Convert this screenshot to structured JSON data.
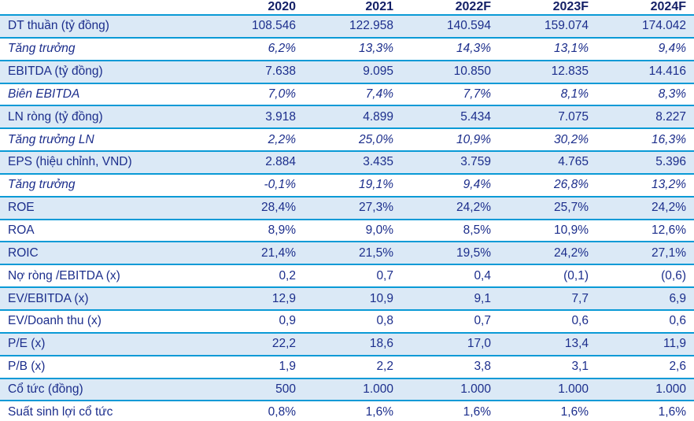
{
  "colors": {
    "header_text": "#131f66",
    "body_text": "#1c2e8c",
    "divider": "#0a9ad6",
    "shaded_row_bg": "#dbe9f6",
    "background": "#ffffff"
  },
  "chart_data": {
    "type": "table",
    "columns": [
      "",
      "2020",
      "2021",
      "2022F",
      "2023F",
      "2024F"
    ],
    "rows": [
      {
        "label": "DT thuần (tỷ đồng)",
        "values": [
          "108.546",
          "122.958",
          "140.594",
          "159.074",
          "174.042"
        ],
        "shaded": true,
        "italic": false
      },
      {
        "label": "Tăng trưởng",
        "values": [
          "6,2%",
          "13,3%",
          "14,3%",
          "13,1%",
          "9,4%"
        ],
        "shaded": false,
        "italic": true
      },
      {
        "label": "EBITDA (tỷ đồng)",
        "values": [
          "7.638",
          "9.095",
          "10.850",
          "12.835",
          "14.416"
        ],
        "shaded": true,
        "italic": false
      },
      {
        "label": "Biên EBITDA",
        "values": [
          "7,0%",
          "7,4%",
          "7,7%",
          "8,1%",
          "8,3%"
        ],
        "shaded": false,
        "italic": true
      },
      {
        "label": "LN ròng (tỷ đồng)",
        "values": [
          "3.918",
          "4.899",
          "5.434",
          "7.075",
          "8.227"
        ],
        "shaded": true,
        "italic": false
      },
      {
        "label": "Tăng trưởng LN",
        "values": [
          "2,2%",
          "25,0%",
          "10,9%",
          "30,2%",
          "16,3%"
        ],
        "shaded": false,
        "italic": true
      },
      {
        "label": "EPS (hiệu chỉnh, VND)",
        "values": [
          "2.884",
          "3.435",
          "3.759",
          "4.765",
          "5.396"
        ],
        "shaded": true,
        "italic": false
      },
      {
        "label": "Tăng trưởng",
        "values": [
          "-0,1%",
          "19,1%",
          "9,4%",
          "26,8%",
          "13,2%"
        ],
        "shaded": false,
        "italic": true
      },
      {
        "label": "ROE",
        "values": [
          "28,4%",
          "27,3%",
          "24,2%",
          "25,7%",
          "24,2%"
        ],
        "shaded": true,
        "italic": false
      },
      {
        "label": "ROA",
        "values": [
          "8,9%",
          "9,0%",
          "8,5%",
          "10,9%",
          "12,6%"
        ],
        "shaded": false,
        "italic": false
      },
      {
        "label": "ROIC",
        "values": [
          "21,4%",
          "21,5%",
          "19,5%",
          "24,2%",
          "27,1%"
        ],
        "shaded": true,
        "italic": false
      },
      {
        "label": "Nợ ròng /EBITDA (x)",
        "values": [
          "0,2",
          "0,7",
          "0,4",
          "(0,1)",
          "(0,6)"
        ],
        "shaded": false,
        "italic": false
      },
      {
        "label": "EV/EBITDA (x)",
        "values": [
          "12,9",
          "10,9",
          "9,1",
          "7,7",
          "6,9"
        ],
        "shaded": true,
        "italic": false
      },
      {
        "label": "EV/Doanh thu (x)",
        "values": [
          "0,9",
          "0,8",
          "0,7",
          "0,6",
          "0,6"
        ],
        "shaded": false,
        "italic": false
      },
      {
        "label": "P/E (x)",
        "values": [
          "22,2",
          "18,6",
          "17,0",
          "13,4",
          "11,9"
        ],
        "shaded": true,
        "italic": false
      },
      {
        "label": "P/B (x)",
        "values": [
          "1,9",
          "2,2",
          "3,8",
          "3,1",
          "2,6"
        ],
        "shaded": false,
        "italic": false
      },
      {
        "label": "Cổ tức (đồng)",
        "values": [
          "500",
          "1.000",
          "1.000",
          "1.000",
          "1.000"
        ],
        "shaded": true,
        "italic": false
      },
      {
        "label": "Suất sinh lợi cổ tức",
        "values": [
          "0,8%",
          "1,6%",
          "1,6%",
          "1,6%",
          "1,6%"
        ],
        "shaded": false,
        "italic": false
      }
    ]
  }
}
